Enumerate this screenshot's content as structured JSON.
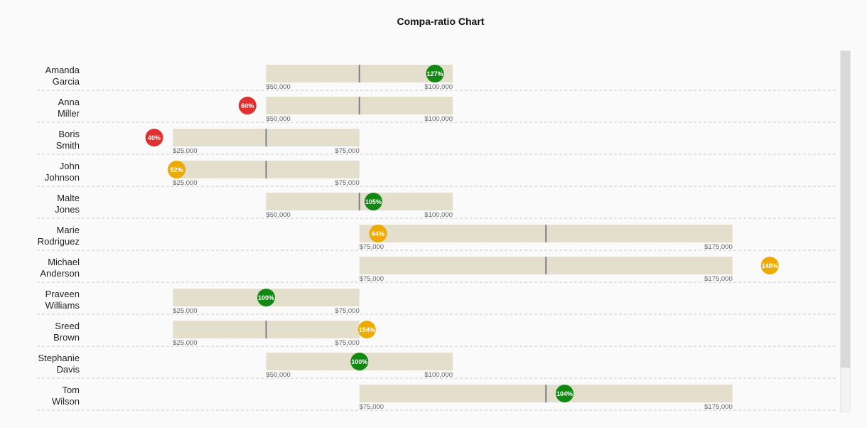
{
  "chart_data": {
    "type": "bullet",
    "title": "Compa-ratio Chart",
    "x_scale": {
      "min": 0,
      "max": 200000,
      "unit": "USD"
    },
    "colors": {
      "band": "#e4dfcd",
      "midpoint": "#7a7f87",
      "low": "#e03030",
      "mid": "#eeaa00",
      "good": "#118811"
    },
    "employees": [
      {
        "first": "Amanda",
        "last": "Garcia",
        "range_min": 50000,
        "range_max": 100000,
        "min_label": "$50,000",
        "max_label": "$100,000",
        "compa_ratio": 127,
        "ratio_label": "127%",
        "status": "good"
      },
      {
        "first": "Anna",
        "last": "Miller",
        "range_min": 50000,
        "range_max": 100000,
        "min_label": "$50,000",
        "max_label": "$100,000",
        "compa_ratio": 60,
        "ratio_label": "60%",
        "status": "low"
      },
      {
        "first": "Boris",
        "last": "Smith",
        "range_min": 25000,
        "range_max": 75000,
        "min_label": "$25,000",
        "max_label": "$75,000",
        "compa_ratio": 40,
        "ratio_label": "40%",
        "status": "low"
      },
      {
        "first": "John",
        "last": "Johnson",
        "range_min": 25000,
        "range_max": 75000,
        "min_label": "$25,000",
        "max_label": "$75,000",
        "compa_ratio": 52,
        "ratio_label": "52%",
        "status": "mid"
      },
      {
        "first": "Malte",
        "last": "Jones",
        "range_min": 50000,
        "range_max": 100000,
        "min_label": "$50,000",
        "max_label": "$100,000",
        "compa_ratio": 105,
        "ratio_label": "105%",
        "status": "good"
      },
      {
        "first": "Marie",
        "last": "Rodriguez",
        "range_min": 75000,
        "range_max": 175000,
        "min_label": "$75,000",
        "max_label": "$175,000",
        "compa_ratio": 64,
        "ratio_label": "64%",
        "status": "mid"
      },
      {
        "first": "Michael",
        "last": "Anderson",
        "range_min": 75000,
        "range_max": 175000,
        "min_label": "$75,000",
        "max_label": "$175,000",
        "compa_ratio": 148,
        "ratio_label": "148%",
        "status": "mid"
      },
      {
        "first": "Praveen",
        "last": "Williams",
        "range_min": 25000,
        "range_max": 75000,
        "min_label": "$25,000",
        "max_label": "$75,000",
        "compa_ratio": 100,
        "ratio_label": "100%",
        "status": "good"
      },
      {
        "first": "Sreed",
        "last": "Brown",
        "range_min": 25000,
        "range_max": 75000,
        "min_label": "$25,000",
        "max_label": "$75,000",
        "compa_ratio": 154,
        "ratio_label": "154%",
        "status": "mid"
      },
      {
        "first": "Stephanie",
        "last": "Davis",
        "range_min": 50000,
        "range_max": 100000,
        "min_label": "$50,000",
        "max_label": "$100,000",
        "compa_ratio": 100,
        "ratio_label": "100%",
        "status": "good"
      },
      {
        "first": "Tom",
        "last": "Wilson",
        "range_min": 75000,
        "range_max": 175000,
        "min_label": "$75,000",
        "max_label": "$175,000",
        "compa_ratio": 104,
        "ratio_label": "104%",
        "status": "good"
      }
    ]
  }
}
